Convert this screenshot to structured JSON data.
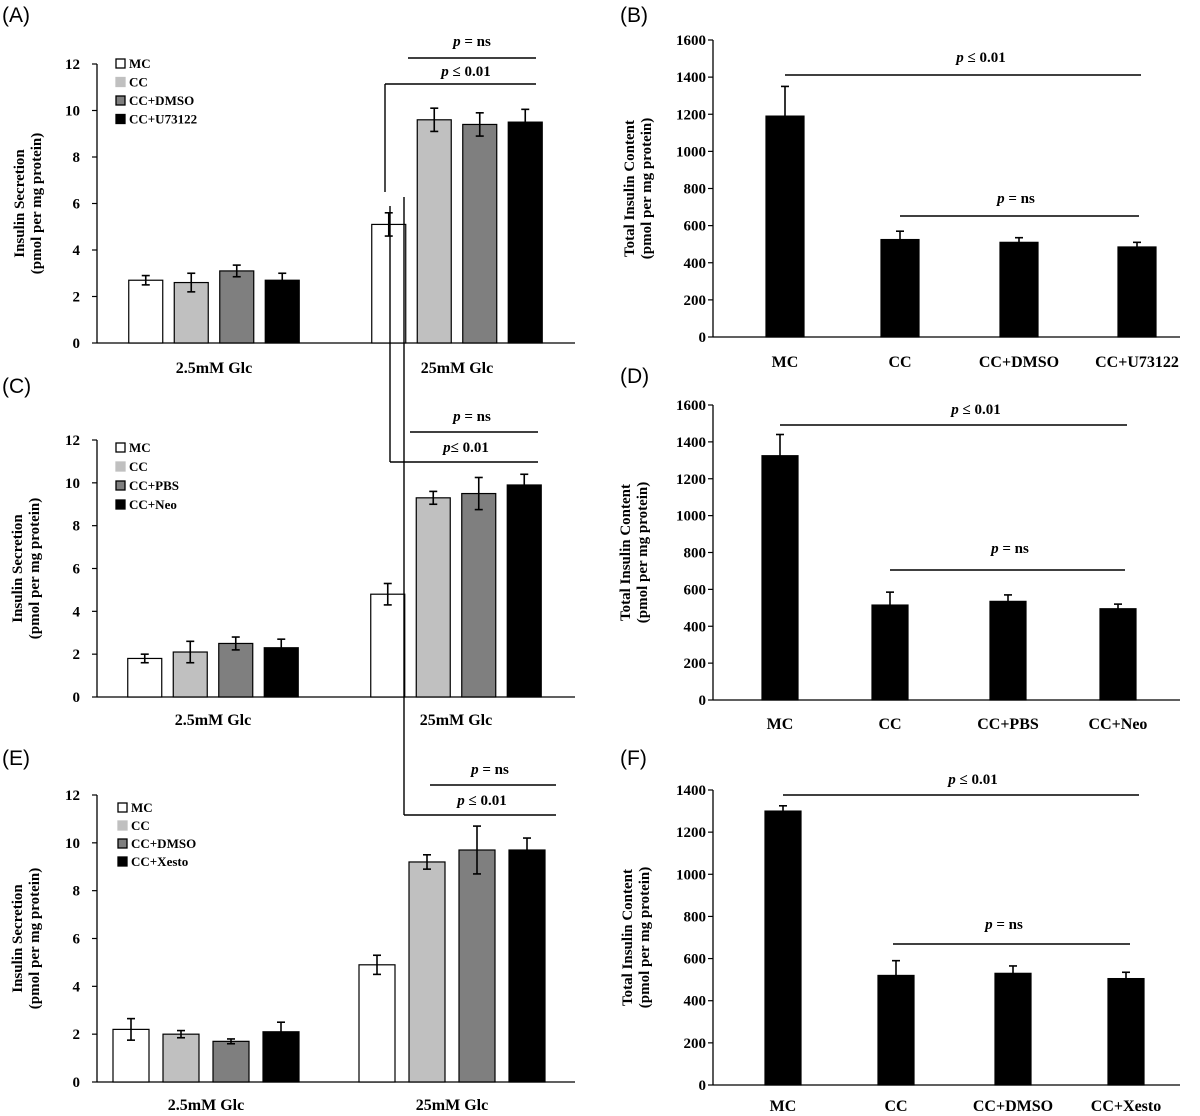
{
  "chart_data": [
    {
      "panel": "(A)",
      "type": "bar",
      "ylabel_1": "Insulin Secretion",
      "ylabel_2": "(pmol per mg protein)",
      "ylim": [
        0,
        12
      ],
      "yticks": [
        0,
        2,
        4,
        6,
        8,
        10,
        12
      ],
      "categories": [
        "2.5mM Glc",
        "25mM Glc"
      ],
      "legend": "top-left",
      "series": [
        {
          "name": "MC",
          "color": "#ffffff",
          "values": [
            2.7,
            5.1
          ],
          "errors": [
            0.2,
            0.5
          ]
        },
        {
          "name": "CC",
          "color": "#c0c0c0",
          "values": [
            2.6,
            9.6
          ],
          "errors": [
            0.4,
            0.5
          ]
        },
        {
          "name": "CC+DMSO",
          "color": "#7f7f7f",
          "values": [
            3.1,
            9.4
          ],
          "errors": [
            0.25,
            0.5
          ]
        },
        {
          "name": "CC+U73122",
          "color": "#000000",
          "values": [
            2.7,
            9.5
          ],
          "errors": [
            0.3,
            0.55
          ]
        }
      ],
      "annotations": [
        {
          "left": "p",
          "right": " = ns"
        },
        {
          "left": "p",
          "right": " ≤  0.01"
        }
      ]
    },
    {
      "panel": "(B)",
      "type": "bar",
      "ylabel_1": "Total Insulin Content",
      "ylabel_2": "(pmol per mg protein)",
      "ylim": [
        0,
        1600
      ],
      "yticks": [
        0,
        200,
        400,
        600,
        800,
        1000,
        1200,
        1400,
        1600
      ],
      "categories": [
        "MC",
        "CC",
        "CC+DMSO",
        "CC+U73122"
      ],
      "values": [
        1190,
        525,
        510,
        485
      ],
      "errors": [
        160,
        45,
        25,
        25
      ],
      "color": "#000000",
      "annotations": [
        {
          "left": "p",
          "right": " ≤  0.01"
        },
        {
          "left": "p",
          "right": " = ns"
        }
      ]
    },
    {
      "panel": "(C)",
      "type": "bar",
      "ylabel_1": "Insulin Secretion",
      "ylabel_2": "(pmol per mg protein)",
      "ylim": [
        0,
        12
      ],
      "yticks": [
        0,
        2,
        4,
        6,
        8,
        10,
        12
      ],
      "categories": [
        "2.5mM Glc",
        "25mM Glc"
      ],
      "legend": "top-left",
      "series": [
        {
          "name": "MC",
          "color": "#ffffff",
          "values": [
            1.8,
            4.8
          ],
          "errors": [
            0.2,
            0.5
          ]
        },
        {
          "name": "CC",
          "color": "#c0c0c0",
          "values": [
            2.1,
            9.3
          ],
          "errors": [
            0.5,
            0.3
          ]
        },
        {
          "name": "CC+PBS",
          "color": "#7f7f7f",
          "values": [
            2.5,
            9.5
          ],
          "errors": [
            0.3,
            0.75
          ]
        },
        {
          "name": "CC+Neo",
          "color": "#000000",
          "values": [
            2.3,
            9.9
          ],
          "errors": [
            0.4,
            0.5
          ]
        }
      ],
      "annotations": [
        {
          "left": "p",
          "right": " = ns"
        },
        {
          "left": "p",
          "right": "≤  0.01"
        }
      ]
    },
    {
      "panel": "(D)",
      "type": "bar",
      "ylabel_1": "Total Insulin Content",
      "ylabel_2": "(pmol per mg protein)",
      "ylim": [
        0,
        1600
      ],
      "yticks": [
        0,
        200,
        400,
        600,
        800,
        1000,
        1200,
        1400,
        1600
      ],
      "categories": [
        "MC",
        "CC",
        "CC+PBS",
        "CC+Neo"
      ],
      "values": [
        1325,
        515,
        535,
        495
      ],
      "errors": [
        115,
        70,
        35,
        25
      ],
      "color": "#000000",
      "annotations": [
        {
          "left": "p",
          "right": " ≤  0.01"
        },
        {
          "left": "p",
          "right": " = ns"
        }
      ]
    },
    {
      "panel": "(E)",
      "type": "bar",
      "ylabel_1": "Insulin Secretion",
      "ylabel_2": "(pmol per mg protein)",
      "ylim": [
        0,
        12
      ],
      "yticks": [
        0,
        2,
        4,
        6,
        8,
        10,
        12
      ],
      "categories": [
        "2.5mM Glc",
        "25mM Glc"
      ],
      "legend": "top-left",
      "series": [
        {
          "name": "MC",
          "color": "#ffffff",
          "values": [
            2.2,
            4.9
          ],
          "errors": [
            0.45,
            0.4
          ]
        },
        {
          "name": "CC",
          "color": "#c0c0c0",
          "values": [
            2.0,
            9.2
          ],
          "errors": [
            0.15,
            0.3
          ]
        },
        {
          "name": "CC+DMSO",
          "color": "#7f7f7f",
          "values": [
            1.7,
            9.7
          ],
          "errors": [
            0.1,
            1.0
          ]
        },
        {
          "name": "CC+Xesto",
          "color": "#000000",
          "values": [
            2.1,
            9.7
          ],
          "errors": [
            0.4,
            0.5
          ]
        }
      ],
      "annotations": [
        {
          "left": "p",
          "right": " = ns"
        },
        {
          "left": "p",
          "right": " ≤  0.01"
        }
      ]
    },
    {
      "panel": "(F)",
      "type": "bar",
      "ylabel_1": "Total Insulin Content",
      "ylabel_2": "(pmol per mg protein)",
      "ylim": [
        0,
        1400
      ],
      "yticks": [
        0,
        200,
        400,
        600,
        800,
        1000,
        1200,
        1400
      ],
      "categories": [
        "MC",
        "CC",
        "CC+DMSO",
        "CC+Xesto"
      ],
      "values": [
        1300,
        520,
        530,
        505
      ],
      "errors": [
        25,
        70,
        35,
        30
      ],
      "color": "#000000",
      "annotations": [
        {
          "left": "p",
          "right": " ≤  0.01"
        },
        {
          "left": "p",
          "right": " = ns"
        }
      ]
    }
  ]
}
